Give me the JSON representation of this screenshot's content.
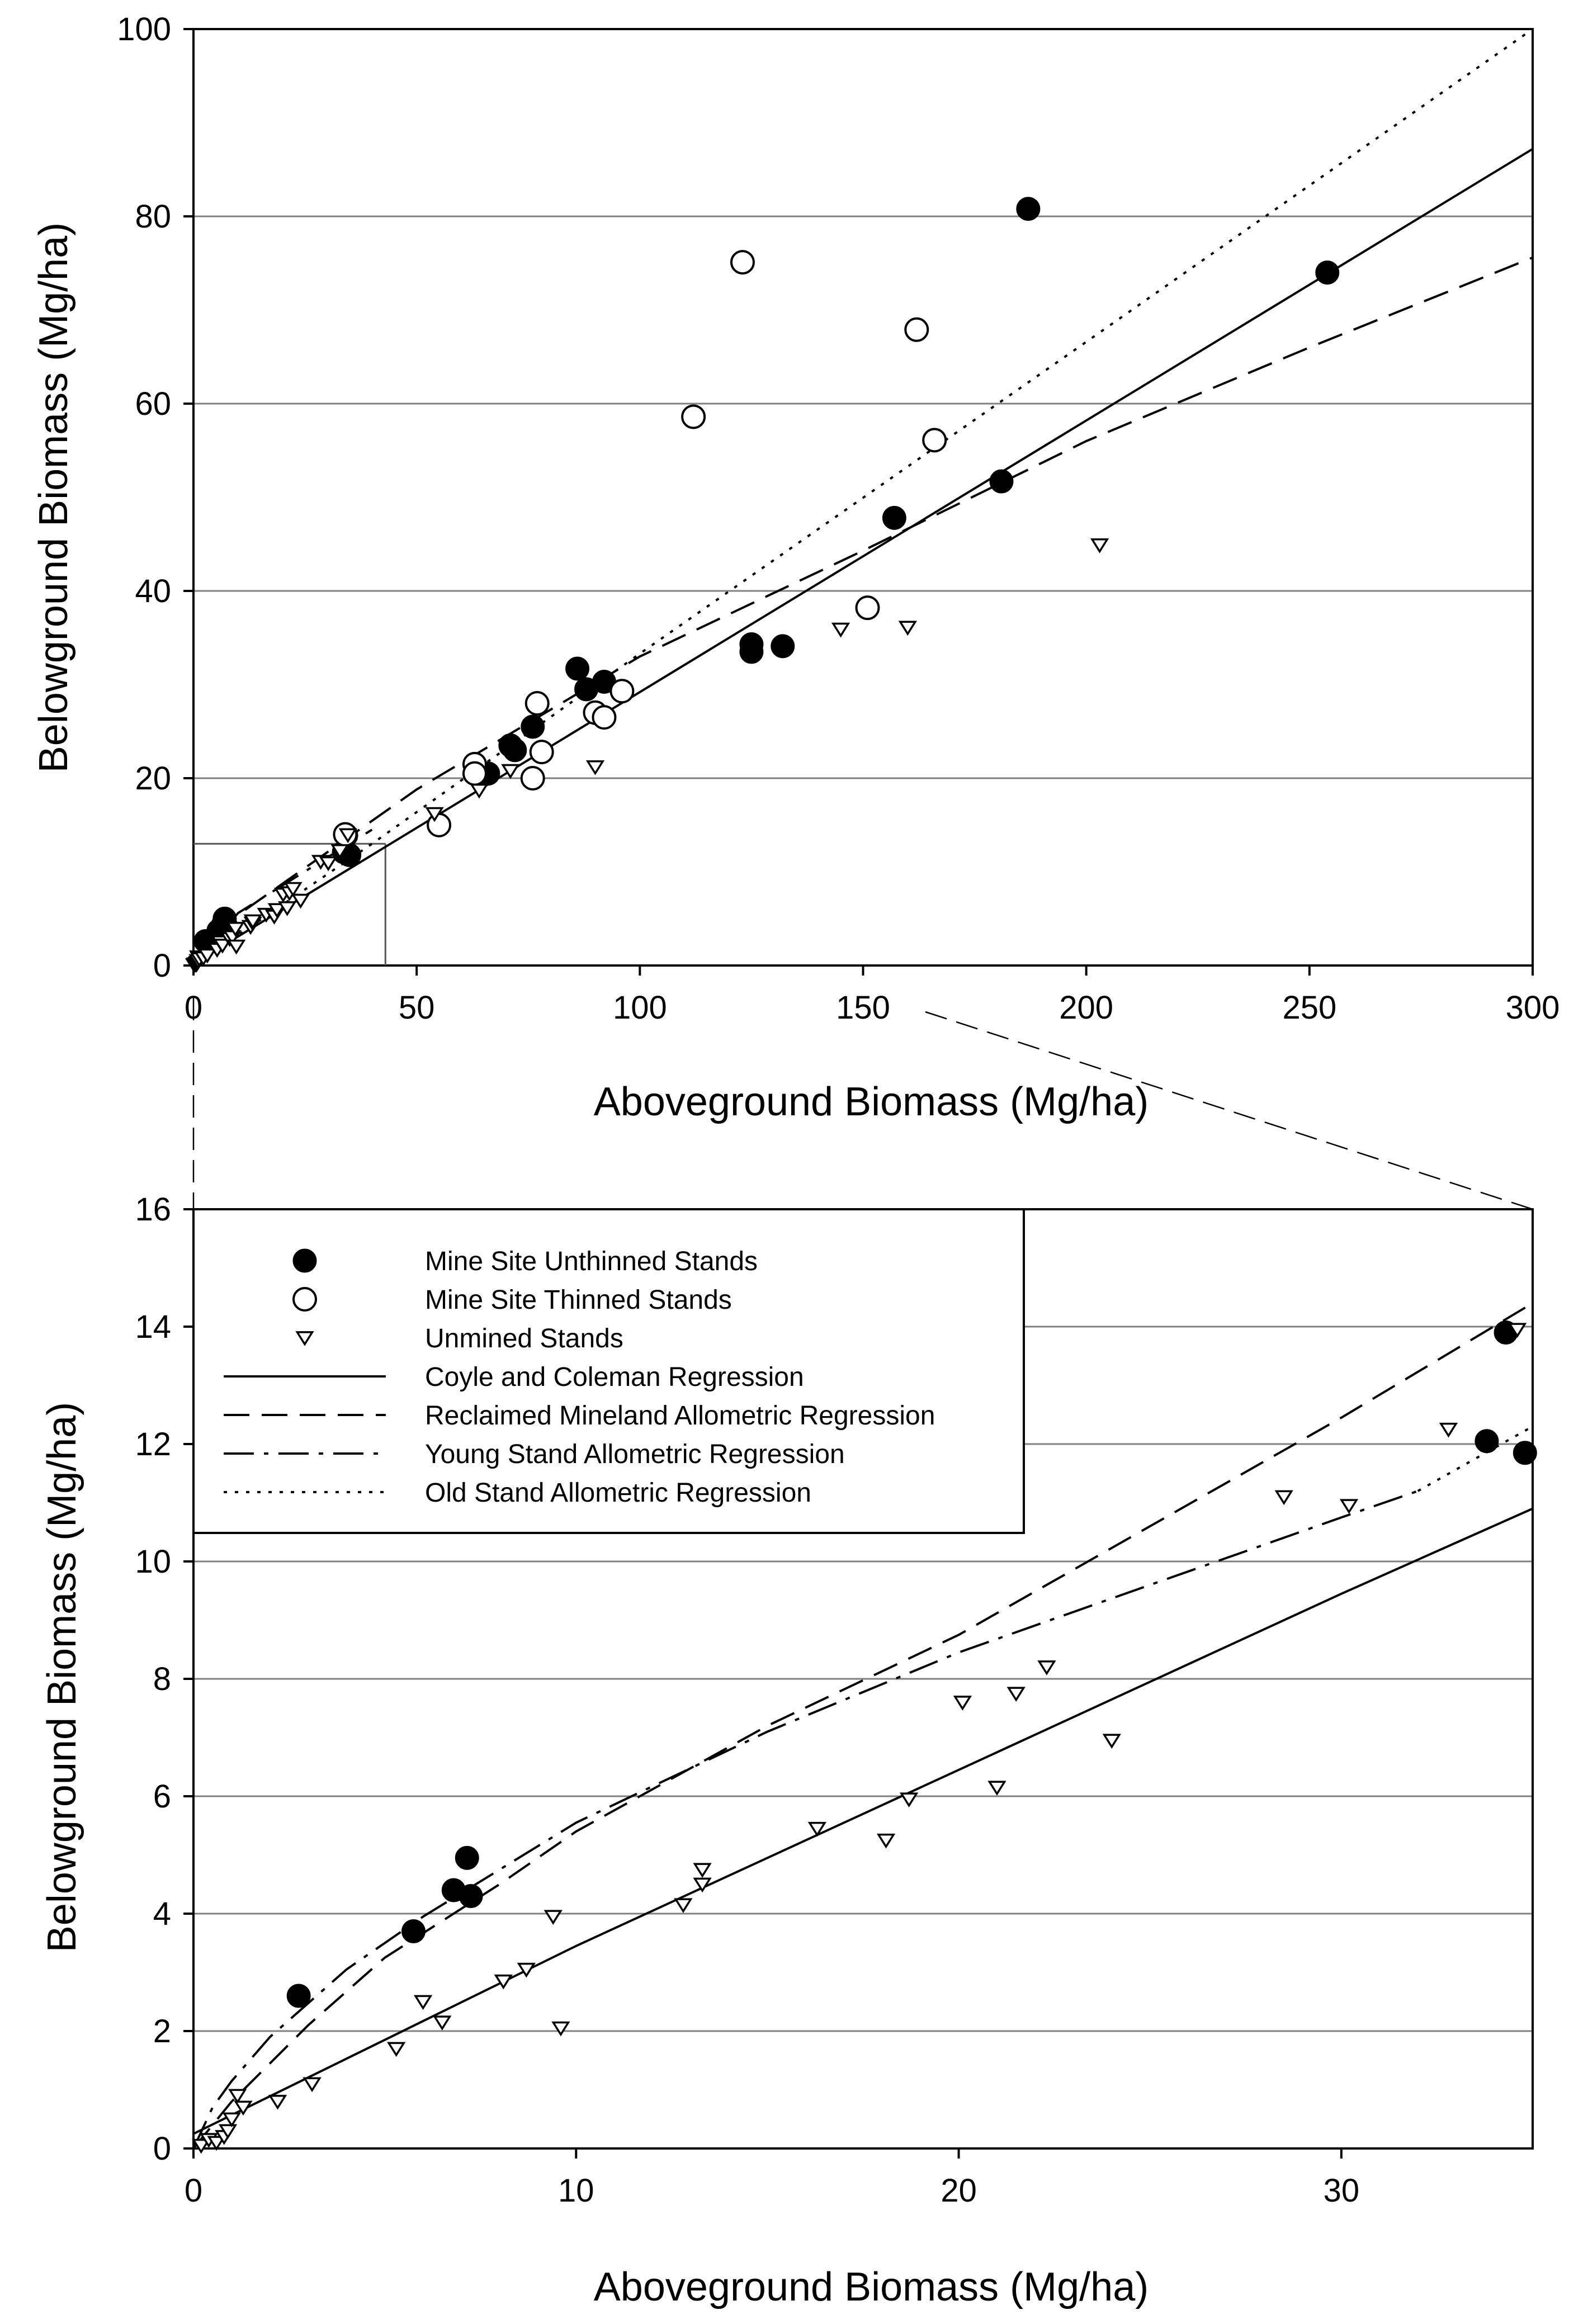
{
  "colors": {
    "ink": "#000000",
    "grid": "#808080",
    "background": "#ffffff"
  },
  "legend": [
    {
      "label": "Mine Site Unthinned Stands",
      "kind": "marker",
      "marker": "filled-circle"
    },
    {
      "label": "Mine Site Thinned Stands",
      "kind": "marker",
      "marker": "open-circle"
    },
    {
      "label": "Unmined Stands",
      "kind": "marker",
      "marker": "open-triangle-down"
    },
    {
      "label": "Coyle and Coleman Regression",
      "kind": "line",
      "dash": "solid"
    },
    {
      "label": "Reclaimed Mineland Allometric Regression",
      "kind": "line",
      "dash": "dashed"
    },
    {
      "label": "Young Stand Allometric Regression",
      "kind": "line",
      "dash": "dash-dot"
    },
    {
      "label": "Old Stand Allometric Regression",
      "kind": "line",
      "dash": "dotted"
    }
  ],
  "chart_data": [
    {
      "type": "scatter",
      "title": "",
      "xlabel": "Aboveground Biomass (Mg/ha)",
      "ylabel": "Belowground Biomass (Mg/ha)",
      "xlim": [
        0,
        300
      ],
      "ylim": [
        0,
        100
      ],
      "xticks": [
        0,
        50,
        100,
        150,
        200,
        250,
        300
      ],
      "yticks": [
        0,
        20,
        40,
        60,
        80,
        100
      ],
      "grid": "horizontal",
      "inset_region": {
        "x": [
          0,
          43
        ],
        "y": [
          0,
          13
        ]
      },
      "series": [
        {
          "name": "Mine Site Unthinned Stands",
          "marker": "filled-circle",
          "points": [
            [
              2.7,
              2.6
            ],
            [
              5.6,
              3.7
            ],
            [
              6.7,
              4.4
            ],
            [
              7.0,
              5.0
            ],
            [
              7.2,
              4.3
            ],
            [
              33.7,
              12.1
            ],
            [
              34.2,
              13.9
            ],
            [
              34.9,
              11.8
            ],
            [
              66,
              20.5
            ],
            [
              71,
              23.5
            ],
            [
              72,
              23.0
            ],
            [
              76,
              25.5
            ],
            [
              86,
              31.7
            ],
            [
              88,
              29.5
            ],
            [
              92,
              30.3
            ],
            [
              125,
              34.3
            ],
            [
              125,
              33.5
            ],
            [
              132,
              34.1
            ],
            [
              157,
              47.8
            ],
            [
              181,
              51.7
            ],
            [
              187,
              80.8
            ],
            [
              254,
              74.0
            ]
          ]
        },
        {
          "name": "Mine Site Thinned Stands",
          "marker": "open-circle",
          "points": [
            [
              34,
              14.0
            ],
            [
              55,
              15.0
            ],
            [
              63,
              21.5
            ],
            [
              63,
              20.5
            ],
            [
              76,
              20.0
            ],
            [
              77,
              28.0
            ],
            [
              78,
              22.8
            ],
            [
              90,
              27.0
            ],
            [
              92,
              26.5
            ],
            [
              96,
              29.3
            ],
            [
              112,
              58.6
            ],
            [
              123,
              75.1
            ],
            [
              151,
              38.2
            ],
            [
              162,
              67.9
            ],
            [
              166,
              56.1
            ]
          ]
        },
        {
          "name": "Unmined Stands",
          "marker": "open-triangle-down",
          "points": [
            [
              0.2,
              0.05
            ],
            [
              0.4,
              0.15
            ],
            [
              0.6,
              0.1
            ],
            [
              0.8,
              0.2
            ],
            [
              0.9,
              0.3
            ],
            [
              1.0,
              0.5
            ],
            [
              1.1,
              0.9
            ],
            [
              1.3,
              0.7
            ],
            [
              2.2,
              0.8
            ],
            [
              3.1,
              1.1
            ],
            [
              5.3,
              1.7
            ],
            [
              6.0,
              2.5
            ],
            [
              6.5,
              2.15
            ],
            [
              8.1,
              2.85
            ],
            [
              8.7,
              3.05
            ],
            [
              9.4,
              3.95
            ],
            [
              9.6,
              2.05
            ],
            [
              12.8,
              4.15
            ],
            [
              13.3,
              4.5
            ],
            [
              13.3,
              4.75
            ],
            [
              16.3,
              5.45
            ],
            [
              18.1,
              5.25
            ],
            [
              18.7,
              5.95
            ],
            [
              20.1,
              7.6
            ],
            [
              21.0,
              6.15
            ],
            [
              21.5,
              7.75
            ],
            [
              22.3,
              8.2
            ],
            [
              24.0,
              6.95
            ],
            [
              28.5,
              11.1
            ],
            [
              30.2,
              10.95
            ],
            [
              32.8,
              12.25
            ],
            [
              34.6,
              13.95
            ],
            [
              54,
              16.2
            ],
            [
              64,
              18.7
            ],
            [
              71,
              20.8
            ],
            [
              90,
              21.2
            ],
            [
              145,
              35.9
            ],
            [
              160,
              36.1
            ],
            [
              203,
              44.9
            ]
          ]
        }
      ],
      "lines": [
        {
          "name": "Coyle and Coleman Regression",
          "dash": "solid",
          "points": [
            [
              0,
              0.2
            ],
            [
              300,
              87.2
            ]
          ]
        },
        {
          "name": "Reclaimed Mineland Allometric Regression",
          "dash": "dashed",
          "points": [
            [
              0,
              0
            ],
            [
              10,
              5.4
            ],
            [
              50,
              18.8
            ],
            [
              100,
              33.0
            ],
            [
              150,
              44.3
            ],
            [
              200,
              56.0
            ],
            [
              250,
              66.0
            ],
            [
              300,
              75.6
            ]
          ]
        },
        {
          "name": "Young Stand Allometric Regression",
          "dash": "dash-dot",
          "points": [
            [
              0,
              0
            ],
            [
              10,
              5.6
            ],
            [
              40,
              14.5
            ]
          ]
        },
        {
          "name": "Old Stand Allometric Regression",
          "dash": "dotted",
          "points": [
            [
              0,
              0
            ],
            [
              40,
              13.0
            ],
            [
              100,
              33.3
            ],
            [
              200,
              66.6
            ],
            [
              300,
              100
            ]
          ]
        }
      ]
    },
    {
      "type": "scatter",
      "title": "",
      "xlabel": "Aboveground Biomass (Mg/ha)",
      "ylabel": "Belowground Biomass (Mg/ha)",
      "xlim": [
        0,
        35
      ],
      "ylim": [
        0,
        16
      ],
      "xticks": [
        0,
        10,
        20,
        30
      ],
      "yticks": [
        0,
        2,
        4,
        6,
        8,
        10,
        12,
        14,
        16
      ],
      "grid": "horizontal",
      "series": [
        {
          "name": "Mine Site Unthinned Stands",
          "marker": "filled-circle",
          "points": [
            [
              2.75,
              2.6
            ],
            [
              5.75,
              3.7
            ],
            [
              6.8,
              4.4
            ],
            [
              7.15,
              4.95
            ],
            [
              7.25,
              4.3
            ],
            [
              33.8,
              12.05
            ],
            [
              34.3,
              13.9
            ],
            [
              34.8,
              11.85
            ]
          ]
        },
        {
          "name": "Mine Site Thinned Stands",
          "marker": "open-circle",
          "points": []
        },
        {
          "name": "Unmined Stands",
          "marker": "open-triangle-down",
          "points": [
            [
              0.2,
              0.05
            ],
            [
              0.4,
              0.15
            ],
            [
              0.6,
              0.1
            ],
            [
              0.8,
              0.2
            ],
            [
              0.9,
              0.3
            ],
            [
              1.0,
              0.5
            ],
            [
              1.15,
              0.9
            ],
            [
              1.3,
              0.7
            ],
            [
              2.2,
              0.8
            ],
            [
              3.1,
              1.1
            ],
            [
              5.3,
              1.7
            ],
            [
              6.0,
              2.5
            ],
            [
              6.5,
              2.15
            ],
            [
              8.1,
              2.85
            ],
            [
              8.7,
              3.05
            ],
            [
              9.4,
              3.95
            ],
            [
              9.6,
              2.05
            ],
            [
              12.8,
              4.15
            ],
            [
              13.3,
              4.5
            ],
            [
              13.3,
              4.75
            ],
            [
              16.3,
              5.45
            ],
            [
              18.1,
              5.25
            ],
            [
              18.7,
              5.95
            ],
            [
              20.1,
              7.6
            ],
            [
              21.0,
              6.15
            ],
            [
              21.5,
              7.75
            ],
            [
              22.3,
              8.2
            ],
            [
              24.0,
              6.95
            ],
            [
              28.5,
              11.1
            ],
            [
              30.2,
              10.95
            ],
            [
              32.8,
              12.25
            ],
            [
              34.6,
              13.95
            ]
          ]
        }
      ],
      "lines": [
        {
          "name": "Coyle and Coleman Regression",
          "dash": "solid",
          "points": [
            [
              0,
              0.25
            ],
            [
              5,
              1.85
            ],
            [
              10,
              3.45
            ],
            [
              15,
              4.95
            ],
            [
              20,
              6.45
            ],
            [
              25,
              7.95
            ],
            [
              30,
              9.45
            ],
            [
              35,
              10.9
            ]
          ]
        },
        {
          "name": "Reclaimed Mineland Allometric Regression",
          "dash": "dashed",
          "points": [
            [
              0,
              0
            ],
            [
              1,
              0.8
            ],
            [
              3,
              2.1
            ],
            [
              5,
              3.25
            ],
            [
              8,
              4.5
            ],
            [
              10,
              5.4
            ],
            [
              15,
              7.2
            ],
            [
              20,
              8.75
            ],
            [
              25,
              10.6
            ],
            [
              30,
              12.45
            ],
            [
              35,
              14.4
            ]
          ]
        },
        {
          "name": "Young Stand Allometric Regression",
          "dash": "dash-dot",
          "points": [
            [
              0,
              0
            ],
            [
              0.5,
              0.7
            ],
            [
              1,
              1.15
            ],
            [
              2,
              1.9
            ],
            [
              4,
              3.05
            ],
            [
              6,
              3.95
            ],
            [
              8,
              4.75
            ],
            [
              10,
              5.55
            ],
            [
              15,
              7.1
            ],
            [
              20,
              8.45
            ],
            [
              25,
              9.6
            ],
            [
              30,
              10.75
            ],
            [
              32,
              11.2
            ]
          ]
        },
        {
          "name": "Old Stand Allometric Regression",
          "dash": "dotted",
          "points": [
            [
              32,
              11.2
            ],
            [
              35,
              12.3
            ]
          ]
        }
      ]
    }
  ]
}
